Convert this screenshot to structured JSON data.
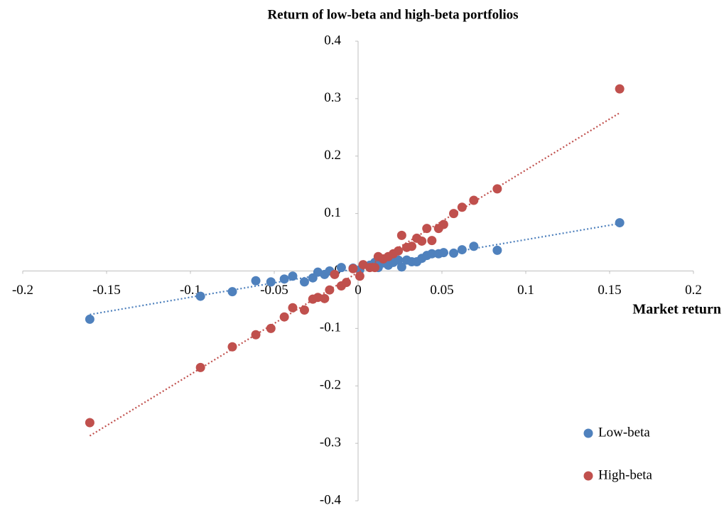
{
  "chart_data": {
    "type": "scatter",
    "title": "Return of low-beta and high-beta portfolios",
    "x_label": "Market return",
    "xlim": [
      -0.2,
      0.2
    ],
    "xticks": [
      -0.2,
      -0.15,
      -0.1,
      -0.05,
      0,
      0.05,
      0.1,
      0.15,
      0.2
    ],
    "ylim": [
      -0.4,
      0.4
    ],
    "yticks": [
      -0.4,
      -0.3,
      -0.2,
      -0.1,
      0,
      0.1,
      0.2,
      0.3,
      0.4
    ],
    "legend": "bottom-right",
    "series": [
      {
        "name": "Low-beta",
        "color": "#4f81bd",
        "trendline": true,
        "x": [
          -0.16,
          -0.094,
          -0.075,
          -0.061,
          -0.052,
          -0.044,
          -0.039,
          -0.032,
          -0.027,
          -0.024,
          -0.02,
          -0.017,
          -0.01,
          -0.003,
          0.001,
          0.007,
          0.01,
          0.012,
          0.015,
          0.018,
          0.021,
          0.024,
          0.026,
          0.029,
          0.032,
          0.035,
          0.038,
          0.041,
          0.044,
          0.048,
          0.051,
          0.057,
          0.062,
          0.069,
          0.083,
          0.156
        ],
        "values": [
          -0.084,
          -0.044,
          -0.036,
          -0.017,
          -0.019,
          -0.014,
          -0.009,
          -0.019,
          -0.012,
          -0.002,
          -0.006,
          0.0,
          0.006,
          0.005,
          0.002,
          0.01,
          0.015,
          0.006,
          0.014,
          0.01,
          0.015,
          0.019,
          0.007,
          0.019,
          0.016,
          0.016,
          0.022,
          0.027,
          0.03,
          0.03,
          0.032,
          0.031,
          0.037,
          0.043,
          0.036,
          0.084
        ]
      },
      {
        "name": "High-beta",
        "color": "#c0504d",
        "trendline": true,
        "x": [
          -0.16,
          -0.094,
          -0.075,
          -0.061,
          -0.052,
          -0.044,
          -0.039,
          -0.032,
          -0.027,
          -0.024,
          -0.02,
          -0.017,
          -0.01,
          -0.007,
          -0.014,
          0.001,
          -0.003,
          0.003,
          0.007,
          0.01,
          0.012,
          0.015,
          0.018,
          0.021,
          0.024,
          0.026,
          0.029,
          0.032,
          0.035,
          0.038,
          0.041,
          0.044,
          0.048,
          0.051,
          0.057,
          0.062,
          0.069,
          0.083,
          0.156
        ],
        "values": [
          -0.264,
          -0.168,
          -0.132,
          -0.111,
          -0.1,
          -0.08,
          -0.064,
          -0.068,
          -0.049,
          -0.046,
          -0.048,
          -0.033,
          -0.026,
          -0.02,
          -0.006,
          -0.009,
          0.004,
          0.011,
          0.006,
          0.006,
          0.025,
          0.021,
          0.025,
          0.03,
          0.035,
          0.062,
          0.041,
          0.043,
          0.057,
          0.052,
          0.074,
          0.053,
          0.074,
          0.081,
          0.1,
          0.111,
          0.123,
          0.143,
          0.317
        ]
      }
    ]
  }
}
